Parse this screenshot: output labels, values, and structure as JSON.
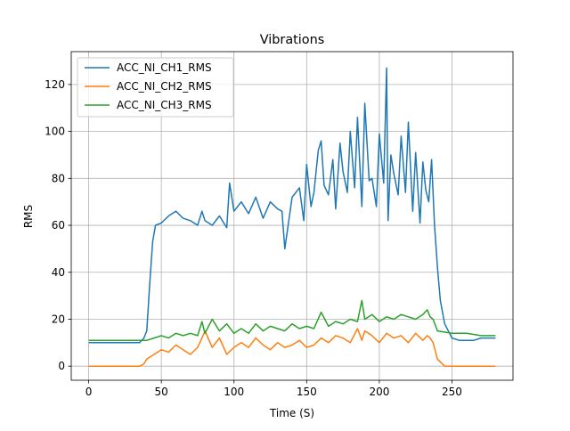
{
  "chart_data": {
    "type": "line",
    "title": "Vibrations",
    "xlabel": "Time (S)",
    "ylabel": "RMS",
    "xlim": [
      -12,
      292
    ],
    "ylim": [
      -6,
      134
    ],
    "xticks": [
      0,
      50,
      100,
      150,
      200,
      250
    ],
    "yticks": [
      0,
      20,
      40,
      60,
      80,
      100,
      120
    ],
    "grid": true,
    "legend_position": "top-left",
    "colors": [
      "#1f77b4",
      "#ff7f0e",
      "#2ca02c"
    ],
    "series": [
      {
        "name": "ACC_NI_CH1_RMS",
        "x": [
          0,
          10,
          20,
          30,
          35,
          38,
          40,
          42,
          44,
          46,
          50,
          55,
          60,
          65,
          70,
          75,
          78,
          80,
          85,
          90,
          95,
          97,
          100,
          105,
          110,
          115,
          120,
          125,
          130,
          133,
          135,
          140,
          145,
          148,
          150,
          153,
          155,
          158,
          160,
          162,
          165,
          168,
          170,
          173,
          175,
          178,
          180,
          183,
          185,
          188,
          190,
          193,
          195,
          198,
          200,
          203,
          205,
          206,
          208,
          210,
          213,
          215,
          218,
          220,
          223,
          225,
          228,
          230,
          232,
          234,
          236,
          238,
          240,
          242,
          245,
          250,
          255,
          260,
          265,
          270,
          275,
          280
        ],
        "y": [
          10,
          10,
          10,
          10,
          10,
          12,
          15,
          35,
          53,
          60,
          61,
          64,
          66,
          63,
          62,
          60,
          66,
          62,
          60,
          64,
          59,
          78,
          66,
          70,
          65,
          72,
          63,
          70,
          67,
          66,
          50,
          72,
          76,
          62,
          86,
          68,
          74,
          92,
          96,
          77,
          73,
          88,
          67,
          95,
          83,
          74,
          100,
          76,
          106,
          68,
          112,
          79,
          80,
          68,
          99,
          78,
          127,
          62,
          90,
          82,
          73,
          98,
          74,
          104,
          66,
          91,
          61,
          87,
          75,
          70,
          88,
          60,
          42,
          28,
          18,
          12,
          11,
          11,
          11,
          12,
          12,
          12
        ]
      },
      {
        "name": "ACC_NI_CH2_RMS",
        "x": [
          0,
          10,
          20,
          30,
          35,
          38,
          40,
          45,
          50,
          55,
          60,
          65,
          70,
          75,
          78,
          80,
          85,
          90,
          95,
          100,
          105,
          110,
          115,
          120,
          125,
          130,
          135,
          140,
          145,
          150,
          155,
          160,
          165,
          170,
          175,
          180,
          185,
          188,
          190,
          195,
          200,
          205,
          210,
          215,
          220,
          225,
          230,
          233,
          235,
          237,
          240,
          245,
          250,
          260,
          270,
          280
        ],
        "y": [
          0,
          0,
          0,
          0,
          0,
          1,
          3,
          5,
          7,
          6,
          9,
          7,
          5,
          8,
          12,
          15,
          8,
          12,
          5,
          8,
          10,
          8,
          12,
          9,
          7,
          10,
          8,
          9,
          11,
          8,
          9,
          12,
          10,
          13,
          12,
          10,
          16,
          11,
          15,
          13,
          10,
          14,
          12,
          13,
          10,
          14,
          11,
          13,
          12,
          10,
          3,
          0,
          0,
          0,
          0,
          0
        ]
      },
      {
        "name": "ACC_NI_CH3_RMS",
        "x": [
          0,
          10,
          20,
          30,
          35,
          40,
          45,
          50,
          55,
          60,
          65,
          70,
          75,
          78,
          80,
          85,
          90,
          95,
          100,
          105,
          110,
          115,
          120,
          125,
          130,
          135,
          140,
          145,
          150,
          155,
          160,
          165,
          170,
          175,
          180,
          185,
          188,
          190,
          195,
          200,
          205,
          210,
          215,
          220,
          225,
          230,
          233,
          235,
          237,
          240,
          250,
          260,
          270,
          280
        ],
        "y": [
          11,
          11,
          11,
          11,
          11,
          11,
          12,
          13,
          12,
          14,
          13,
          14,
          13,
          19,
          14,
          20,
          15,
          18,
          14,
          16,
          14,
          18,
          15,
          17,
          16,
          15,
          18,
          16,
          17,
          16,
          23,
          17,
          19,
          18,
          20,
          19,
          28,
          20,
          22,
          19,
          21,
          20,
          22,
          21,
          20,
          22,
          24,
          21,
          20,
          15,
          14,
          14,
          13,
          13
        ]
      }
    ]
  }
}
